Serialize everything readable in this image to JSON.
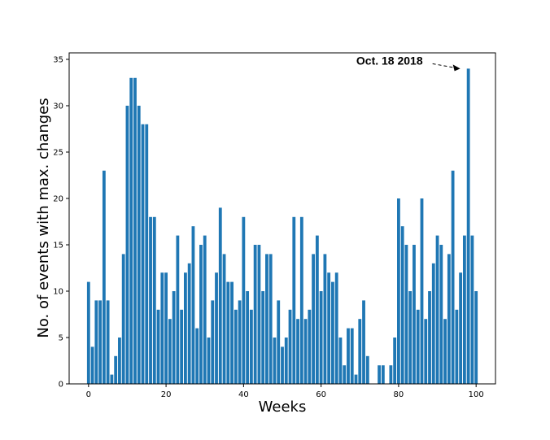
{
  "chart_data": {
    "type": "bar",
    "xlabel": "Weeks",
    "ylabel": "No. of events with max. changes",
    "xlim": [
      -5,
      105
    ],
    "ylim": [
      0,
      35.7
    ],
    "xticks": [
      0,
      20,
      40,
      60,
      80,
      100
    ],
    "yticks": [
      0,
      5,
      10,
      15,
      20,
      25,
      30,
      35
    ],
    "grid": false,
    "bar_color": "#1f77b4",
    "x": [
      0,
      1,
      2,
      3,
      4,
      5,
      6,
      7,
      8,
      9,
      10,
      11,
      12,
      13,
      14,
      15,
      16,
      17,
      18,
      19,
      20,
      21,
      22,
      23,
      24,
      25,
      26,
      27,
      28,
      29,
      30,
      31,
      32,
      33,
      34,
      35,
      36,
      37,
      38,
      39,
      40,
      41,
      42,
      43,
      44,
      45,
      46,
      47,
      48,
      49,
      50,
      51,
      52,
      53,
      54,
      55,
      56,
      57,
      58,
      59,
      60,
      61,
      62,
      63,
      64,
      65,
      66,
      67,
      68,
      69,
      70,
      71,
      72,
      73,
      74,
      75,
      76,
      77,
      78,
      79,
      80,
      81,
      82,
      83,
      84,
      85,
      86,
      87,
      88,
      89,
      90,
      91,
      92,
      93,
      94,
      95,
      96,
      97,
      98,
      99,
      100
    ],
    "values": [
      11,
      4,
      9,
      9,
      23,
      9,
      1,
      3,
      5,
      14,
      30,
      33,
      33,
      30,
      28,
      28,
      18,
      18,
      8,
      12,
      12,
      7,
      10,
      16,
      8,
      12,
      13,
      17,
      6,
      15,
      16,
      5,
      9,
      12,
      19,
      14,
      11,
      11,
      8,
      9,
      18,
      10,
      8,
      15,
      15,
      10,
      14,
      14,
      5,
      9,
      4,
      5,
      8,
      18,
      7,
      18,
      7,
      8,
      14,
      16,
      10,
      14,
      12,
      11,
      12,
      5,
      2,
      6,
      6,
      1,
      7,
      9,
      3,
      0,
      0,
      2,
      2,
      0,
      2,
      5,
      20,
      17,
      15,
      10,
      15,
      8,
      20,
      7,
      10,
      13,
      16,
      15,
      7,
      14,
      23,
      8,
      12,
      16,
      34,
      16,
      10
    ],
    "annotation": {
      "text": "Oct. 18 2018",
      "target_x": 98,
      "target_y": 34
    }
  }
}
